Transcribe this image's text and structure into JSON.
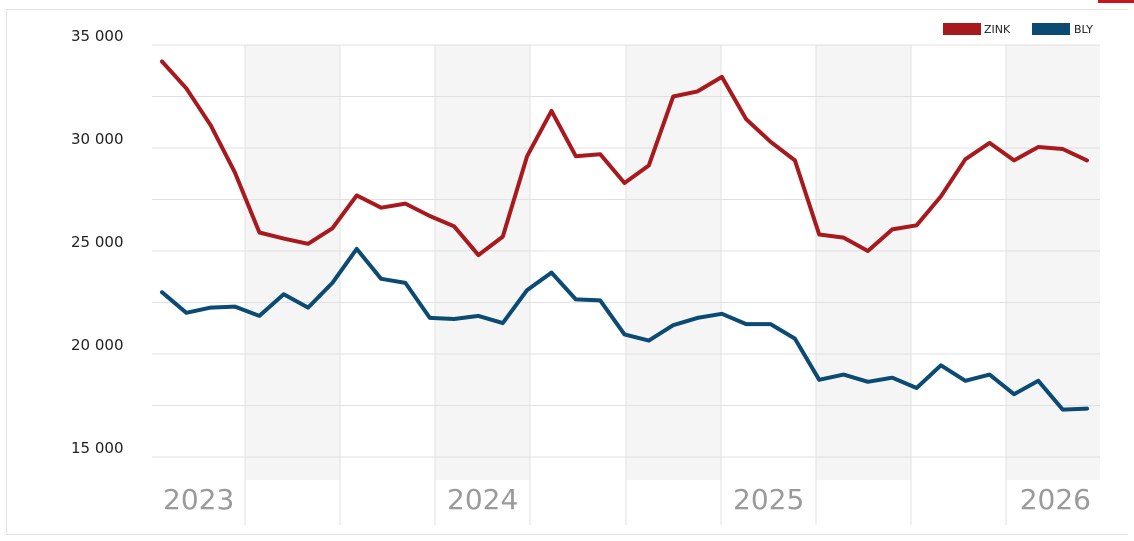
{
  "chart_data": {
    "type": "line",
    "ylim": [
      15000,
      35000
    ],
    "y_ticks": [
      {
        "value": 35000,
        "label": "35 000"
      },
      {
        "value": 30000,
        "label": "30 000"
      },
      {
        "value": 25000,
        "label": "25 000"
      },
      {
        "value": 20000,
        "label": "20 000"
      },
      {
        "value": 15000,
        "label": "15 000"
      }
    ],
    "x_tick_labels": [
      "2023",
      "2024",
      "2025",
      "2026"
    ],
    "legend": {
      "position": "top-right"
    },
    "grid": true,
    "series": [
      {
        "name": "ZINK",
        "color": "#a8191d",
        "values": [
          34200,
          32900,
          31100,
          28800,
          25900,
          25600,
          25350,
          26100,
          27700,
          27100,
          27300,
          26700,
          26200,
          24800,
          25700,
          29600,
          31800,
          29600,
          29700,
          28300,
          29150,
          32500,
          32750,
          33450,
          31400,
          30300,
          29400,
          25800,
          25650,
          25000,
          26050,
          26250,
          27650,
          29450,
          30250,
          29400,
          30050,
          29950,
          29400
        ]
      },
      {
        "name": "BLY",
        "color": "#0b4a73",
        "values": [
          23000,
          22000,
          22250,
          22300,
          21850,
          22900,
          22250,
          23450,
          25100,
          23650,
          23450,
          21750,
          21700,
          21850,
          21500,
          23100,
          23950,
          22650,
          22600,
          20950,
          20650,
          21400,
          21750,
          21950,
          21450,
          21450,
          20750,
          18750,
          19000,
          18650,
          18850,
          18350,
          19450,
          18700,
          19000,
          18050,
          18700,
          17300,
          17350
        ]
      }
    ]
  }
}
